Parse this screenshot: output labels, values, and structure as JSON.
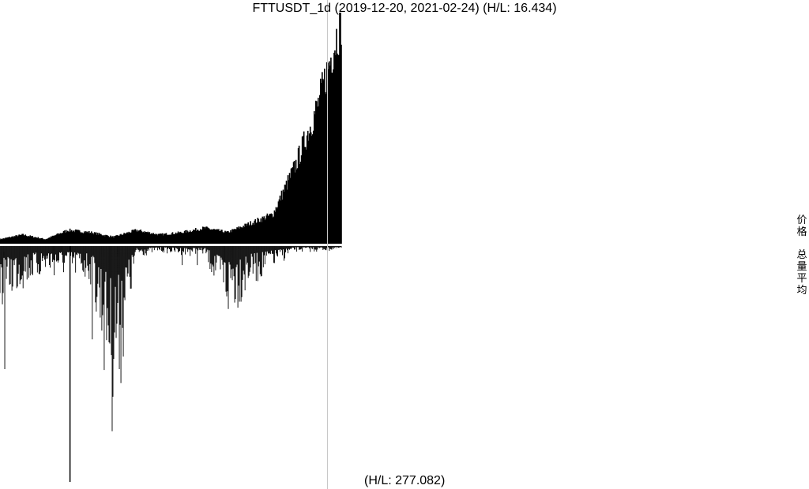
{
  "title": "FTTUSDT_1d (2019-12-20, 2021-02-24) (H/L: 16.434)",
  "bottom_label": "(H/L: 277.082)",
  "side_labels": {
    "price": "价格",
    "volume": "总量平均"
  },
  "colors": {
    "bars": "#000000",
    "cursor": "#c8c8c8",
    "axis": "#000000",
    "background": "#ffffff"
  },
  "chart_data": {
    "type": "bar",
    "title": "FTTUSDT_1d (2019-12-20, 2021-02-24) (H/L: 16.434)",
    "x": {
      "start": "2019-12-20",
      "end": "2021-02-24",
      "interval": "1d"
    },
    "panels": [
      {
        "name": "价格",
        "direction": "up",
        "hl_ratio": 16.434,
        "ylim": [
          0,
          1
        ],
        "note_values": "relative price (fraction of range max), sampled in 16 equal time segments",
        "values": [
          0.02,
          0.04,
          0.02,
          0.06,
          0.05,
          0.03,
          0.06,
          0.04,
          0.05,
          0.07,
          0.05,
          0.09,
          0.13,
          0.35,
          0.62,
          1.0
        ]
      },
      {
        "name": "总量平均",
        "direction": "down",
        "hl_ratio": 277.082,
        "ylim": [
          0,
          1
        ],
        "note_values": "relative volume (fraction of range max), sampled in 16 equal time segments",
        "values": [
          0.35,
          0.22,
          0.16,
          0.16,
          0.2,
          1.0,
          0.06,
          0.03,
          0.05,
          0.05,
          0.4,
          0.22,
          0.12,
          0.03,
          0.03,
          0.02
        ]
      }
    ],
    "grid": false,
    "legend": "none"
  }
}
